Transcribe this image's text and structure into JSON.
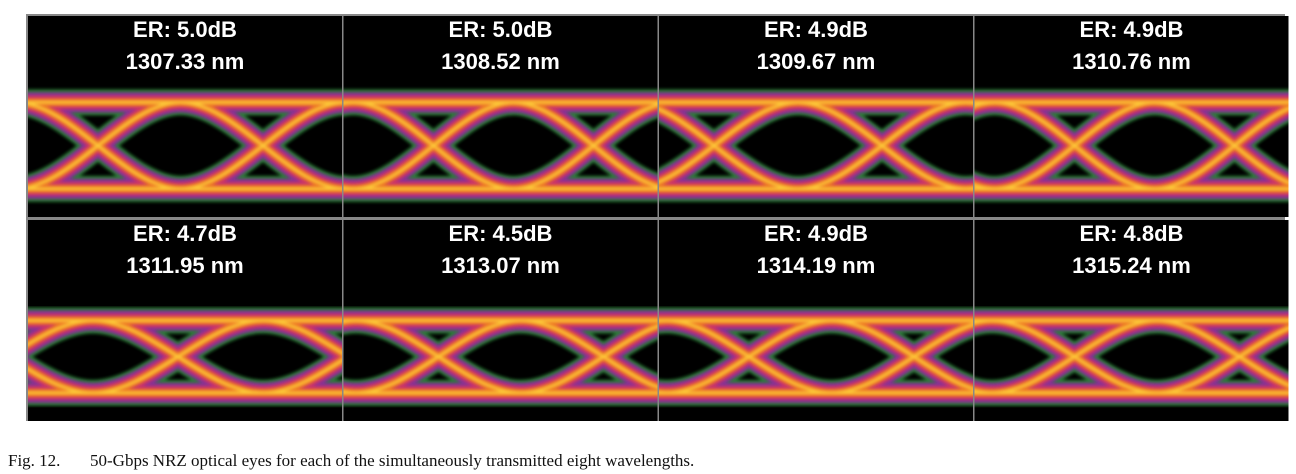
{
  "figure": {
    "panels": [
      {
        "er": "ER: 5.0dB",
        "wavelength": "1307.33 nm"
      },
      {
        "er": "ER: 5.0dB",
        "wavelength": "1308.52 nm"
      },
      {
        "er": "ER: 4.9dB",
        "wavelength": "1309.67 nm"
      },
      {
        "er": "ER: 4.9dB",
        "wavelength": "1310.76 nm"
      },
      {
        "er": "ER: 4.7dB",
        "wavelength": "1311.95 nm"
      },
      {
        "er": "ER: 4.5dB",
        "wavelength": "1313.07 nm"
      },
      {
        "er": "ER: 4.9dB",
        "wavelength": "1314.19 nm"
      },
      {
        "er": "ER: 4.8dB",
        "wavelength": "1315.24 nm"
      }
    ],
    "caption": {
      "label": "Fig. 12.",
      "text": "50-Gbps NRZ optical eyes for each of the simultaneously transmitted eight wavelengths."
    }
  }
}
